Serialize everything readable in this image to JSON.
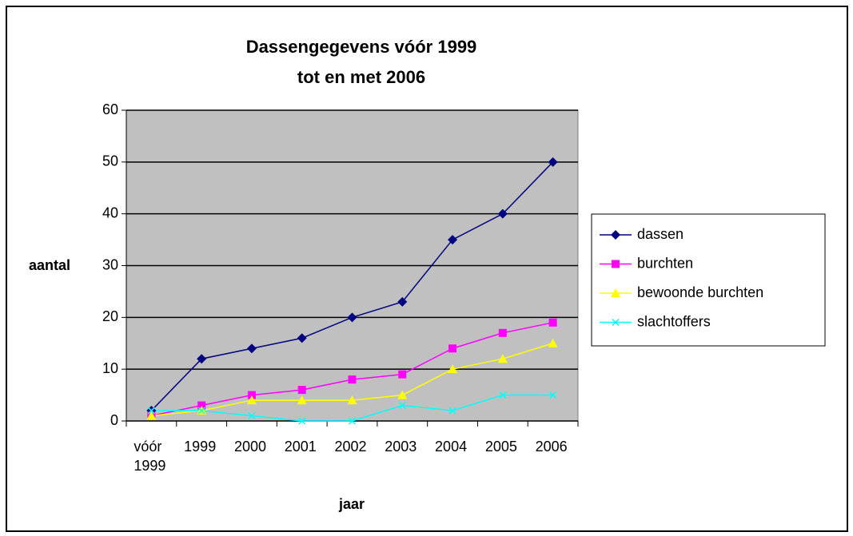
{
  "chart_data": {
    "type": "line",
    "title": [
      "Dassengegevens vóór 1999",
      "tot en met 2006"
    ],
    "xlabel": "jaar",
    "ylabel": "aantal",
    "categories": [
      "vóór 1999",
      "1999",
      "2000",
      "2001",
      "2002",
      "2003",
      "2004",
      "2005",
      "2006"
    ],
    "series": [
      {
        "name": "dassen",
        "color": "#000080",
        "marker": "diamond",
        "values": [
          2,
          12,
          14,
          16,
          20,
          23,
          35,
          40,
          50
        ]
      },
      {
        "name": "burchten",
        "color": "#ff00ff",
        "marker": "square",
        "values": [
          1,
          3,
          5,
          6,
          8,
          9,
          14,
          17,
          19
        ]
      },
      {
        "name": "bewoonde burchten",
        "color": "#ffff00",
        "marker": "triangle",
        "values": [
          1,
          2,
          4,
          4,
          4,
          5,
          10,
          12,
          15
        ]
      },
      {
        "name": "slachtoffers",
        "color": "#00ffff",
        "marker": "x",
        "values": [
          2,
          2,
          1,
          0,
          0,
          3,
          2,
          5,
          5
        ]
      }
    ],
    "ylim": [
      0,
      60
    ],
    "yticks": [
      0,
      10,
      20,
      30,
      40,
      50,
      60
    ],
    "grid": true,
    "legend": "right"
  }
}
